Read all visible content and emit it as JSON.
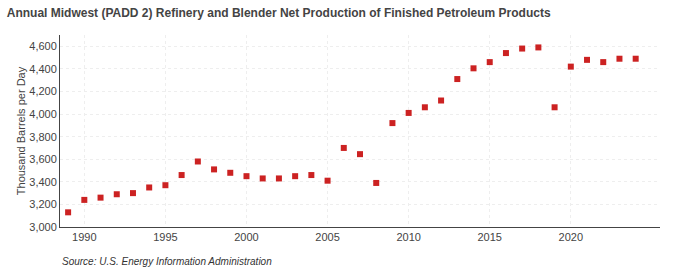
{
  "chart_data": {
    "type": "scatter",
    "title": "Annual Midwest (PADD 2) Refinery and Blender Net Production of Finished Petroleum Products",
    "ylabel": "Thousand Barrels per Day",
    "annotations": [
      "Source: U.S. Energy Information Administration"
    ],
    "x": [
      1989,
      1990,
      1991,
      1992,
      1993,
      1994,
      1995,
      1996,
      1997,
      1998,
      1999,
      2000,
      2001,
      2002,
      2003,
      2004,
      2005,
      2006,
      2007,
      2008,
      2009,
      2010,
      2011,
      2012,
      2013,
      2014,
      2015,
      2016,
      2017,
      2018,
      2019,
      2020,
      2021,
      2022,
      2023,
      2024
    ],
    "values": [
      3130,
      3240,
      3260,
      3290,
      3300,
      3350,
      3370,
      3460,
      3580,
      3510,
      3480,
      3450,
      3430,
      3430,
      3450,
      3460,
      3410,
      3700,
      3645,
      3390,
      3920,
      4010,
      4060,
      4120,
      4310,
      4405,
      4460,
      4540,
      4580,
      4590,
      4060,
      4420,
      4480,
      4460,
      4490,
      4490
    ],
    "color": "#cc2222",
    "marker": "square",
    "xlim": [
      1988.5,
      2025.5
    ],
    "xticks": [
      1990,
      1995,
      2000,
      2005,
      2010,
      2015,
      2020
    ],
    "ylim": [
      3000,
      4700
    ],
    "yticks": [
      {
        "value": 3000,
        "label": "3,000"
      },
      {
        "value": 3200,
        "label": "3,200"
      },
      {
        "value": 3400,
        "label": "3,400"
      },
      {
        "value": 3600,
        "label": "3,600"
      },
      {
        "value": 3800,
        "label": "3,800"
      },
      {
        "value": 4000,
        "label": "4,000"
      },
      {
        "value": 4200,
        "label": "4,200"
      },
      {
        "value": 4400,
        "label": "4,400"
      },
      {
        "value": 4600,
        "label": "4,600"
      }
    ],
    "grid": true
  }
}
